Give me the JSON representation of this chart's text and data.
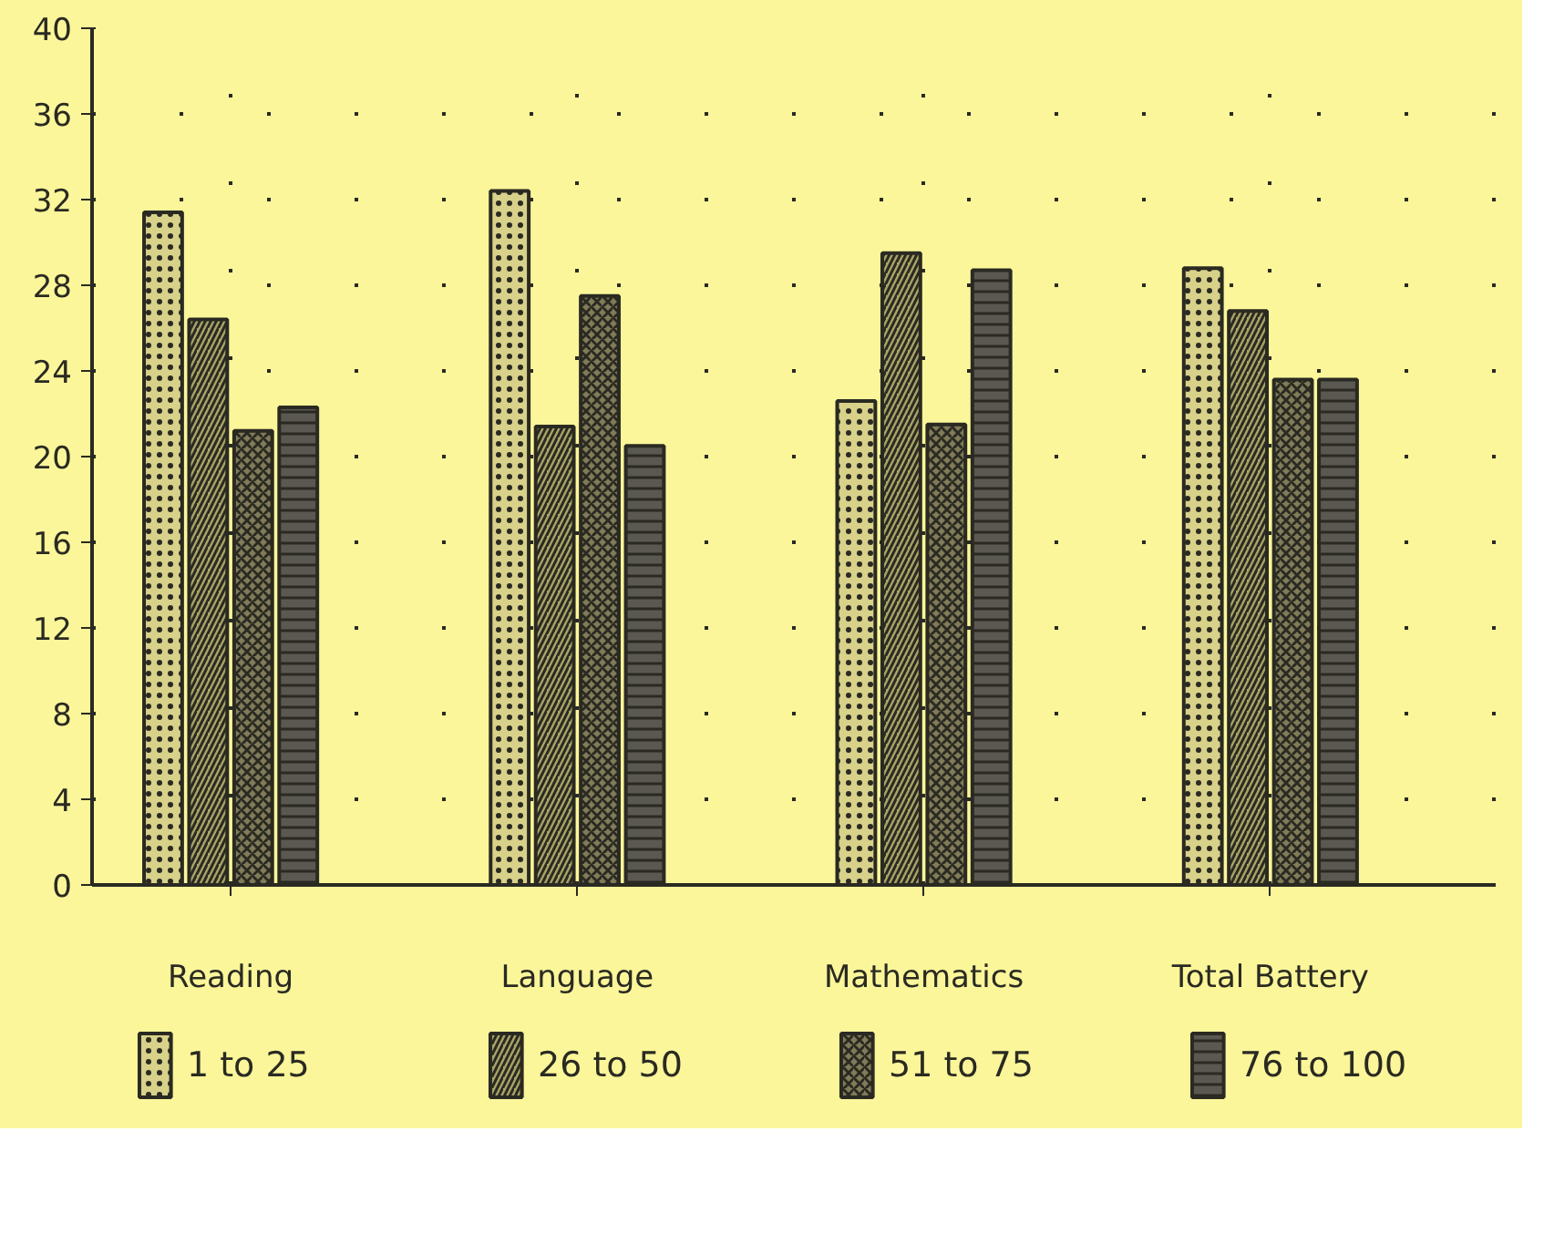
{
  "chart_data": {
    "type": "bar",
    "categories": [
      "Reading",
      "Language",
      "Mathematics",
      "Total Battery"
    ],
    "series": [
      {
        "name": "1 to 25",
        "color": "#d8d18a",
        "values": [
          31.4,
          32.4,
          22.6,
          28.8
        ]
      },
      {
        "name": "26 to 50",
        "color": "#a9a366",
        "values": [
          26.4,
          21.4,
          29.5,
          26.8
        ]
      },
      {
        "name": "51 to 75",
        "color": "#807b58",
        "values": [
          21.2,
          27.5,
          21.5,
          23.6
        ]
      },
      {
        "name": "76 to 100",
        "color": "#5a5850",
        "values": [
          22.3,
          20.5,
          28.7,
          23.6
        ]
      }
    ],
    "ylim": [
      0,
      40
    ],
    "yticks": [
      0,
      4,
      8,
      12,
      16,
      20,
      24,
      28,
      32,
      36,
      40
    ],
    "grid": true,
    "legend": "bottom"
  }
}
